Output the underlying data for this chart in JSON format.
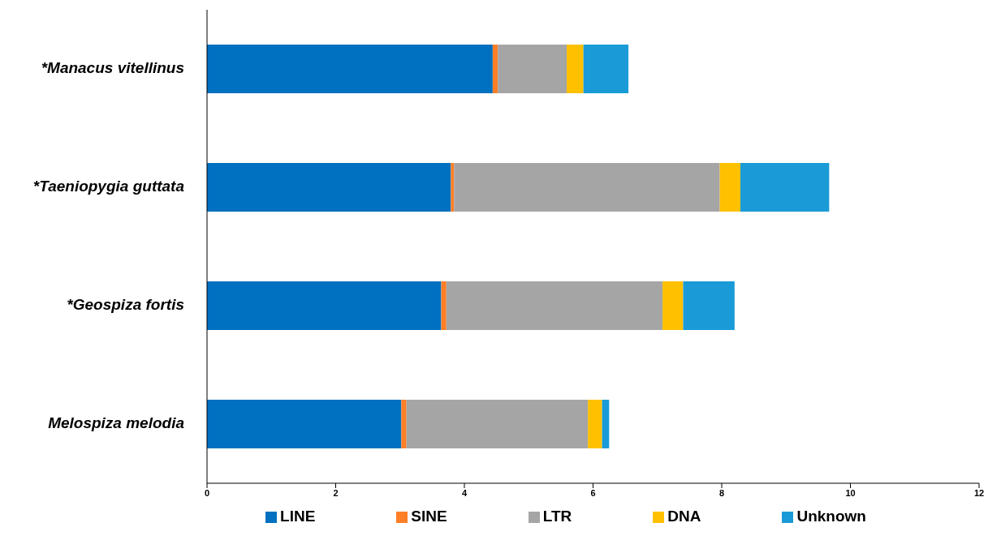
{
  "chart_data": {
    "type": "bar",
    "orientation": "horizontal",
    "stacked": true,
    "categories": [
      "*Manacus vitellinus",
      "*Taeniopygia guttata",
      "*Geospiza fortis",
      "Melospiza melodia"
    ],
    "series": [
      {
        "name": "LINE",
        "color": "#0070c0",
        "values": [
          4.44,
          3.79,
          3.64,
          3.02
        ]
      },
      {
        "name": "SINE",
        "color": "#ff7f27",
        "values": [
          0.08,
          0.05,
          0.08,
          0.08
        ]
      },
      {
        "name": "LTR",
        "color": "#a5a5a5",
        "values": [
          1.07,
          4.13,
          3.36,
          2.82
        ]
      },
      {
        "name": "DNA",
        "color": "#ffc000",
        "values": [
          0.26,
          0.32,
          0.32,
          0.22
        ]
      },
      {
        "name": "Unknown",
        "color": "#1a9bd7",
        "values": [
          0.7,
          1.38,
          0.8,
          0.11
        ]
      }
    ],
    "xlim": [
      0,
      12
    ],
    "xticks": [
      0,
      2,
      4,
      6,
      8,
      10,
      12
    ],
    "grid": false,
    "legend": "bottom"
  }
}
